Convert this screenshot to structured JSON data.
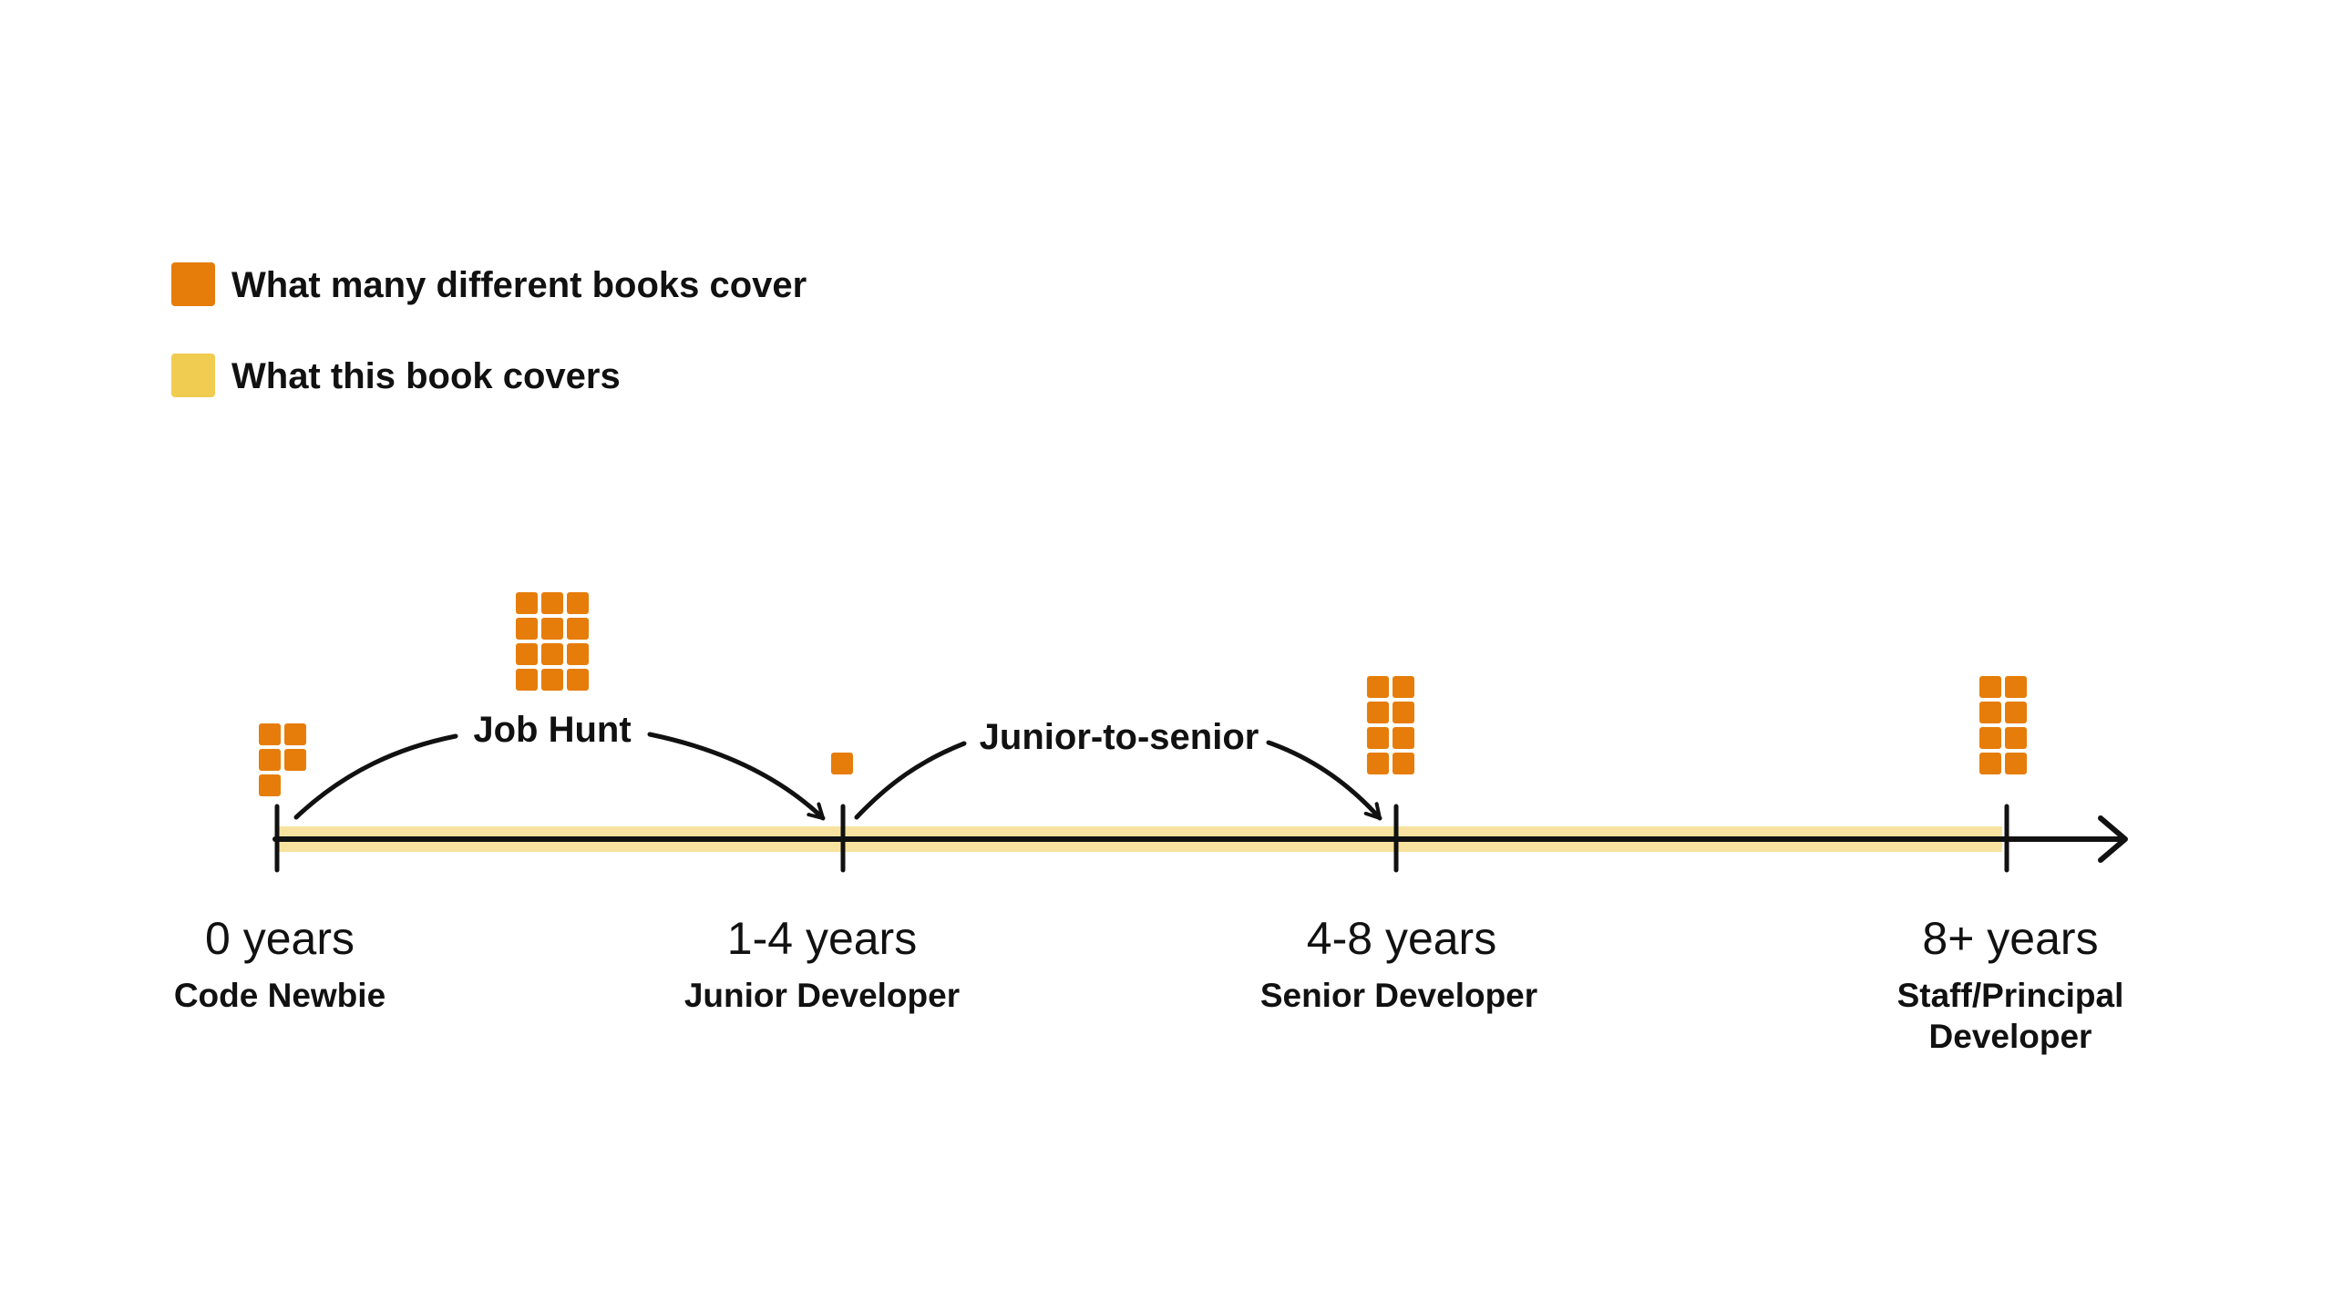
{
  "colors": {
    "many_books": "#e67d0a",
    "this_book": "#f0cc50",
    "ink": "#111111"
  },
  "legend": [
    {
      "label": "What many different books cover",
      "color": "#e67d0a"
    },
    {
      "label": "What this book covers",
      "color": "#f0cc50"
    }
  ],
  "stages": [
    {
      "years": "0 years",
      "role": "Code Newbie",
      "role_line2": "",
      "books": 5
    },
    {
      "years": "1-4 years",
      "role": "Junior Developer",
      "role_line2": "",
      "books": 1
    },
    {
      "years": "4-8 years",
      "role": "Senior Developer",
      "role_line2": "",
      "books": 8
    },
    {
      "years": "8+ years",
      "role": "Staff/Principal",
      "role_line2": "Developer",
      "books": 8
    }
  ],
  "transitions": [
    {
      "label": "Job Hunt",
      "books": 12
    },
    {
      "label": "Junior-to-senior",
      "books": 0
    }
  ]
}
